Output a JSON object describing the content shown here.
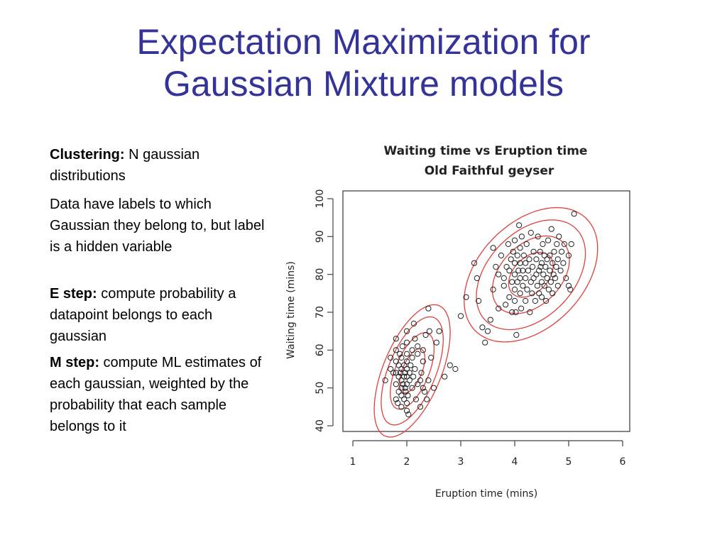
{
  "slide": {
    "title_line1": "Expectation Maximization for",
    "title_line2": "Gaussian Mixture models"
  },
  "text": {
    "clustering_label": "Clustering:",
    "clustering_text": " N gaussian distributions",
    "hidden_text": "Data have labels to which Gaussian they belong to, but label is a hidden variable",
    "estep_label": "E step:",
    "estep_text": " compute probability a datapoint belongs to each gaussian",
    "mstep_label": "M step:",
    "mstep_text": " compute ML estimates of each gaussian, weighted by the probability that each sample belongs to it"
  },
  "colors": {
    "title": "#333399",
    "contour": "#e0403c",
    "points": "#222222"
  },
  "chart_data": {
    "type": "scatter",
    "title": "Waiting time vs Eruption time",
    "subtitle": "Old Faithful geyser",
    "xlabel": "Eruption time (mins)",
    "ylabel": "Waiting time (mins)",
    "xlim": [
      1,
      6
    ],
    "ylim": [
      40,
      100
    ],
    "xticks": [
      1,
      2,
      3,
      4,
      5,
      6
    ],
    "yticks": [
      40,
      50,
      60,
      70,
      80,
      90,
      100
    ],
    "grid": false,
    "points": [
      [
        1.6,
        52
      ],
      [
        1.7,
        55
      ],
      [
        1.7,
        58
      ],
      [
        1.75,
        54
      ],
      [
        1.8,
        47
      ],
      [
        1.8,
        51
      ],
      [
        1.8,
        54
      ],
      [
        1.8,
        57
      ],
      [
        1.8,
        60
      ],
      [
        1.8,
        63
      ],
      [
        1.83,
        46
      ],
      [
        1.85,
        49
      ],
      [
        1.85,
        53
      ],
      [
        1.85,
        56
      ],
      [
        1.87,
        59
      ],
      [
        1.88,
        54
      ],
      [
        1.9,
        45
      ],
      [
        1.9,
        48
      ],
      [
        1.9,
        50
      ],
      [
        1.9,
        52
      ],
      [
        1.9,
        55
      ],
      [
        1.9,
        58
      ],
      [
        1.92,
        61
      ],
      [
        1.93,
        51
      ],
      [
        1.95,
        47
      ],
      [
        1.95,
        53
      ],
      [
        1.95,
        56
      ],
      [
        1.97,
        50
      ],
      [
        1.97,
        54
      ],
      [
        1.98,
        49
      ],
      [
        2.0,
        44
      ],
      [
        2.0,
        46
      ],
      [
        2.0,
        51
      ],
      [
        2.0,
        53
      ],
      [
        2.0,
        55
      ],
      [
        2.0,
        57
      ],
      [
        2.0,
        59
      ],
      [
        2.0,
        62
      ],
      [
        2.0,
        65
      ],
      [
        2.02,
        48
      ],
      [
        2.03,
        43
      ],
      [
        2.05,
        52
      ],
      [
        2.05,
        54
      ],
      [
        2.07,
        56
      ],
      [
        2.1,
        50
      ],
      [
        2.1,
        58
      ],
      [
        2.1,
        60
      ],
      [
        2.12,
        53
      ],
      [
        2.13,
        67
      ],
      [
        2.15,
        55
      ],
      [
        2.15,
        63
      ],
      [
        2.17,
        47
      ],
      [
        2.2,
        51
      ],
      [
        2.2,
        59
      ],
      [
        2.2,
        61
      ],
      [
        2.25,
        45
      ],
      [
        2.25,
        52
      ],
      [
        2.27,
        54
      ],
      [
        2.3,
        50
      ],
      [
        2.3,
        57
      ],
      [
        2.3,
        60
      ],
      [
        2.33,
        49
      ],
      [
        2.35,
        64
      ],
      [
        2.37,
        47
      ],
      [
        2.4,
        71
      ],
      [
        2.4,
        52
      ],
      [
        2.42,
        65
      ],
      [
        2.45,
        58
      ],
      [
        2.5,
        50
      ],
      [
        2.55,
        62
      ],
      [
        2.6,
        65
      ],
      [
        2.7,
        53
      ],
      [
        2.8,
        56
      ],
      [
        2.9,
        55
      ],
      [
        3.0,
        69
      ],
      [
        3.1,
        74
      ],
      [
        3.25,
        83
      ],
      [
        3.3,
        79
      ],
      [
        3.33,
        73
      ],
      [
        3.4,
        66
      ],
      [
        3.45,
        62
      ],
      [
        3.5,
        65
      ],
      [
        3.55,
        68
      ],
      [
        3.6,
        87
      ],
      [
        3.6,
        76
      ],
      [
        3.65,
        82
      ],
      [
        3.7,
        71
      ],
      [
        3.7,
        80
      ],
      [
        3.75,
        85
      ],
      [
        3.8,
        77
      ],
      [
        3.8,
        79
      ],
      [
        3.83,
        72
      ],
      [
        3.85,
        82
      ],
      [
        3.88,
        88
      ],
      [
        3.9,
        74
      ],
      [
        3.9,
        81
      ],
      [
        3.93,
        84
      ],
      [
        3.95,
        70
      ],
      [
        3.95,
        78
      ],
      [
        3.97,
        86
      ],
      [
        4.0,
        73
      ],
      [
        4.0,
        76
      ],
      [
        4.0,
        80
      ],
      [
        4.0,
        83
      ],
      [
        4.0,
        89
      ],
      [
        4.02,
        70
      ],
      [
        4.03,
        64
      ],
      [
        4.05,
        78
      ],
      [
        4.05,
        85
      ],
      [
        4.07,
        81
      ],
      [
        4.08,
        93
      ],
      [
        4.1,
        75
      ],
      [
        4.1,
        79
      ],
      [
        4.1,
        83
      ],
      [
        4.1,
        87
      ],
      [
        4.12,
        71
      ],
      [
        4.13,
        90
      ],
      [
        4.15,
        77
      ],
      [
        4.15,
        81
      ],
      [
        4.17,
        85
      ],
      [
        4.2,
        73
      ],
      [
        4.2,
        79
      ],
      [
        4.2,
        83
      ],
      [
        4.22,
        88
      ],
      [
        4.23,
        76
      ],
      [
        4.25,
        81
      ],
      [
        4.27,
        84
      ],
      [
        4.28,
        70
      ],
      [
        4.3,
        78
      ],
      [
        4.3,
        91
      ],
      [
        4.32,
        75
      ],
      [
        4.33,
        82
      ],
      [
        4.35,
        86
      ],
      [
        4.35,
        79
      ],
      [
        4.38,
        73
      ],
      [
        4.4,
        80
      ],
      [
        4.4,
        84
      ],
      [
        4.42,
        77
      ],
      [
        4.43,
        90
      ],
      [
        4.45,
        81
      ],
      [
        4.45,
        75
      ],
      [
        4.47,
        86
      ],
      [
        4.48,
        82
      ],
      [
        4.5,
        78
      ],
      [
        4.5,
        83
      ],
      [
        4.5,
        74
      ],
      [
        4.52,
        88
      ],
      [
        4.53,
        80
      ],
      [
        4.55,
        85
      ],
      [
        4.55,
        77
      ],
      [
        4.57,
        82
      ],
      [
        4.58,
        73
      ],
      [
        4.6,
        79
      ],
      [
        4.6,
        84
      ],
      [
        4.62,
        89
      ],
      [
        4.63,
        76
      ],
      [
        4.65,
        81
      ],
      [
        4.65,
        85
      ],
      [
        4.67,
        78
      ],
      [
        4.68,
        92
      ],
      [
        4.7,
        83
      ],
      [
        4.7,
        75
      ],
      [
        4.72,
        80
      ],
      [
        4.73,
        86
      ],
      [
        4.75,
        79
      ],
      [
        4.77,
        82
      ],
      [
        4.78,
        88
      ],
      [
        4.8,
        84
      ],
      [
        4.8,
        77
      ],
      [
        4.82,
        90
      ],
      [
        4.85,
        81
      ],
      [
        4.87,
        86
      ],
      [
        4.9,
        83
      ],
      [
        4.92,
        88
      ],
      [
        4.95,
        79
      ],
      [
        5.0,
        85
      ],
      [
        5.0,
        77
      ],
      [
        5.03,
        76
      ],
      [
        5.05,
        88
      ],
      [
        5.1,
        96
      ]
    ],
    "contour_groups": [
      {
        "center": [
          2.1,
          54.5
        ],
        "shape": [
          [
            0.055,
            0.79
          ],
          [
            0.79,
            34.0
          ]
        ],
        "levels": [
          1,
          3,
          6,
          9
        ]
      },
      {
        "center": [
          4.3,
          79.9
        ],
        "shape": [
          [
            0.17,
            0.95
          ],
          [
            0.95,
            35.0
          ]
        ],
        "levels": [
          1,
          3,
          6,
          9
        ]
      }
    ]
  }
}
